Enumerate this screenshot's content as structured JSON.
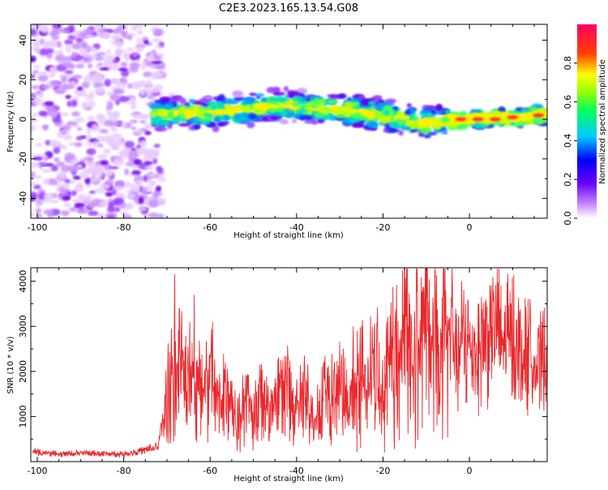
{
  "title": "C2E3.2023.165.13.54.G08",
  "colors": {
    "axis": "#000000",
    "snr_line": "#e8282c"
  },
  "chart_data": [
    {
      "type": "heatmap",
      "xlabel": "Height of straight line (km)",
      "ylabel": "Frequency (Hz)",
      "xlim": [
        -101.5,
        18
      ],
      "ylim": [
        -50,
        48
      ],
      "x_ticks": [
        -100,
        -80,
        -60,
        -40,
        -20,
        0
      ],
      "y_ticks": [
        -40,
        -20,
        0,
        20,
        40
      ],
      "x_tick_labels": [
        "-100",
        "-80",
        "-60",
        "-40",
        "-20",
        "0"
      ],
      "y_tick_labels": [
        "-40",
        "-20",
        "0",
        "20",
        "40"
      ],
      "grid": false,
      "noise_region_km": [
        -101.5,
        -73
      ],
      "signal_region_km": [
        -73,
        18
      ],
      "signal_center_hz": [
        {
          "x": -73,
          "y": 3
        },
        {
          "x": -60,
          "y": 3
        },
        {
          "x": -45,
          "y": 7
        },
        {
          "x": -30,
          "y": 5
        },
        {
          "x": -20,
          "y": 2
        },
        {
          "x": -10,
          "y": -2
        },
        {
          "x": 0,
          "y": 0
        },
        {
          "x": 10,
          "y": 1
        },
        {
          "x": 18,
          "y": 2
        }
      ],
      "colorbar": {
        "label": "Normalized spectral amplitude",
        "range": [
          0,
          1
        ],
        "ticks": [
          0.0,
          0.2,
          0.4,
          0.6,
          0.8
        ],
        "tick_labels": [
          "0.0",
          "0.2",
          "0.4",
          "0.6",
          "0.8"
        ],
        "colormap": [
          "#ffffff",
          "#9900ff",
          "#0000ff",
          "#00ffff",
          "#00ff00",
          "#ffff00",
          "#ff0000",
          "#ff0080"
        ]
      }
    },
    {
      "type": "line",
      "xlabel": "Height of straight line (km)",
      "ylabel": "SNR (10 * v/v)",
      "xlim": [
        -101.5,
        18
      ],
      "ylim": [
        0,
        4300
      ],
      "x_ticks": [
        -100,
        -80,
        -60,
        -40,
        -20,
        0
      ],
      "y_ticks": [
        1000,
        2000,
        3000,
        4000
      ],
      "x_tick_labels": [
        "-100",
        "-80",
        "-60",
        "-40",
        "-20",
        "0"
      ],
      "y_tick_labels": [
        "1000",
        "2000",
        "3000",
        "4000"
      ],
      "grid": false,
      "series": [
        {
          "x": [
            -101,
            -95,
            -90,
            -85,
            -80,
            -75,
            -72,
            -70,
            -68,
            -66,
            -64,
            -62,
            -60,
            -58,
            -56,
            -54,
            -52,
            -50,
            -48,
            -46,
            -44,
            -42,
            -40,
            -38,
            -36,
            -34,
            -32,
            -30,
            -28,
            -26,
            -24,
            -22,
            -20,
            -18,
            -16,
            -15,
            -13,
            -12,
            -11,
            -10,
            -9,
            -8,
            -7,
            -6,
            -5,
            -4,
            -3,
            -2,
            0,
            2,
            4,
            6,
            8,
            10,
            12,
            14,
            16,
            18
          ],
          "y": [
            200,
            150,
            170,
            160,
            150,
            230,
            300,
            1300,
            2400,
            1600,
            2200,
            1500,
            1900,
            1200,
            1800,
            900,
            1400,
            1000,
            1600,
            900,
            1300,
            1500,
            1100,
            1400,
            900,
            1500,
            1300,
            1700,
            1200,
            2000,
            1500,
            2300,
            1400,
            2600,
            2000,
            4000,
            1700,
            3200,
            2500,
            4300,
            1800,
            3300,
            1500,
            3600,
            2400,
            3100,
            2200,
            2600,
            2600,
            2500,
            2800,
            3000,
            2600,
            2900,
            2300,
            2500,
            2000,
            2600
          ]
        }
      ]
    }
  ]
}
